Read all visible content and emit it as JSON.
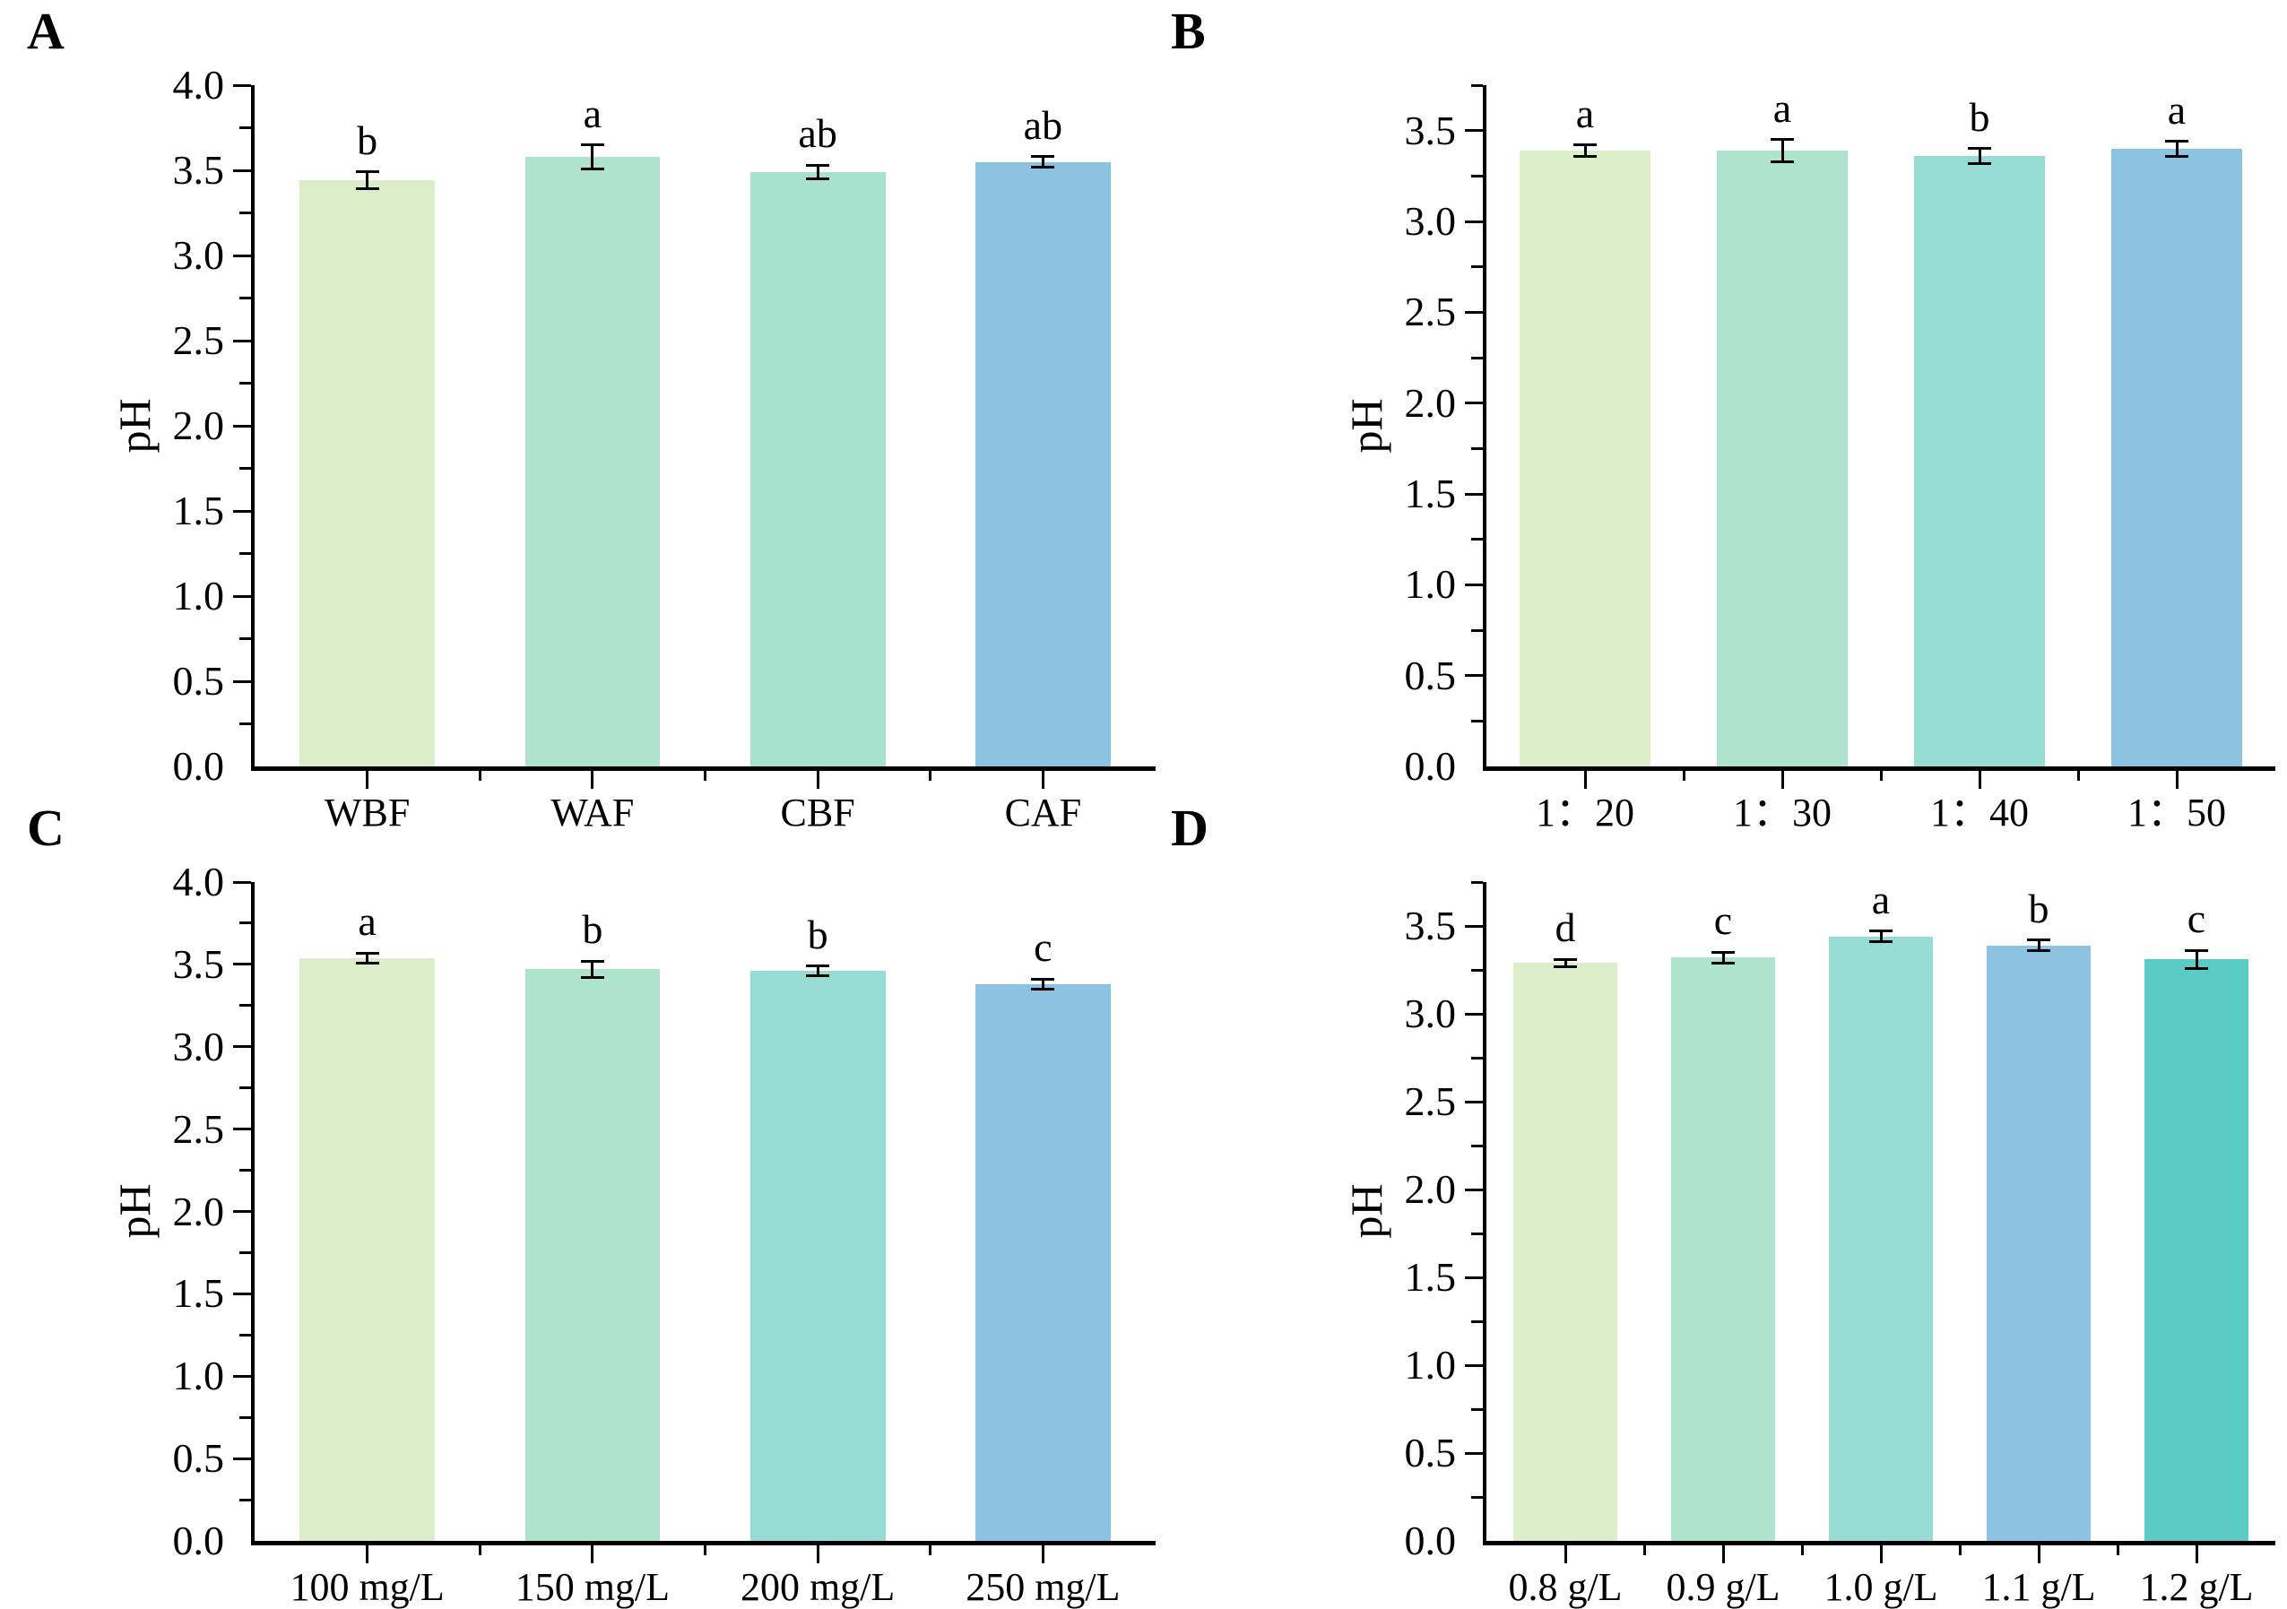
{
  "figure_title": "",
  "accent_colors": {
    "light_green": "#d9eec9",
    "mint_green": "#aee3cd",
    "aqua_teal": "#96dcd5",
    "light_blue": "#8cc3e3",
    "dark_teal": "#5accc5",
    "axis_black": "#000000"
  },
  "chart_data": [
    {
      "type": "bar",
      "panel_label": "A",
      "title": "",
      "xlabel": "",
      "ylabel": "pH",
      "ylim": [
        0,
        4.0
      ],
      "ytick_step": 0.5,
      "ytick_labels": [
        "0.0",
        "0.5",
        "1.0",
        "1.5",
        "2.0",
        "2.5",
        "3.0",
        "3.5",
        "4.0"
      ],
      "grid": false,
      "legend": "none",
      "categories": [
        "WBF",
        "WAF",
        "CBF",
        "CAF"
      ],
      "values": [
        3.44,
        3.58,
        3.49,
        3.55
      ],
      "errors": [
        0.05,
        0.07,
        0.04,
        0.03
      ],
      "sig_letters": [
        "b",
        "a",
        "ab",
        "ab"
      ],
      "colors": [
        "#d9eec9",
        "#aee3cd",
        "#a8e2cf",
        "#8cc3e3"
      ]
    },
    {
      "type": "bar",
      "panel_label": "B",
      "title": "",
      "xlabel": "",
      "ylabel": "pH",
      "ylim": [
        0,
        3.75
      ],
      "ytick_step": 0.5,
      "ytick_labels": [
        "0.0",
        "0.5",
        "1.0",
        "1.5",
        "2.0",
        "2.5",
        "3.0",
        "3.5"
      ],
      "grid": false,
      "legend": "none",
      "categories": [
        "1：20",
        "1：30",
        "1：40",
        "1：50"
      ],
      "values": [
        3.39,
        3.39,
        3.36,
        3.4
      ],
      "errors": [
        0.03,
        0.06,
        0.04,
        0.04
      ],
      "sig_letters": [
        "a",
        "a",
        "b",
        "a"
      ],
      "colors": [
        "#d9eec9",
        "#aee3cd",
        "#96dcd5",
        "#8cc3e3"
      ]
    },
    {
      "type": "bar",
      "panel_label": "C",
      "title": "",
      "xlabel": "",
      "ylabel": "pH",
      "ylim": [
        0,
        4.0
      ],
      "ytick_step": 0.5,
      "ytick_labels": [
        "0.0",
        "0.5",
        "1.0",
        "1.5",
        "2.0",
        "2.5",
        "3.0",
        "3.5",
        "4.0"
      ],
      "grid": false,
      "legend": "none",
      "categories": [
        "100 mg/L",
        "150 mg/L",
        "200 mg/L",
        "250 mg/L"
      ],
      "values": [
        3.54,
        3.47,
        3.46,
        3.38
      ],
      "errors": [
        0.03,
        0.05,
        0.03,
        0.03
      ],
      "sig_letters": [
        "a",
        "b",
        "b",
        "c"
      ],
      "colors": [
        "#d9eec9",
        "#aee3cd",
        "#96dcd5",
        "#8cc3e3"
      ]
    },
    {
      "type": "bar",
      "panel_label": "D",
      "title": "",
      "xlabel": "",
      "ylabel": "pH",
      "ylim": [
        0,
        3.75
      ],
      "ytick_step": 0.5,
      "ytick_labels": [
        "0.0",
        "0.5",
        "1.0",
        "1.5",
        "2.0",
        "2.5",
        "3.0",
        "3.5"
      ],
      "grid": false,
      "legend": "none",
      "categories": [
        "0.8 g/L",
        "0.9 g/L",
        "1.0 g/L",
        "1.1 g/L",
        "1.2 g/L"
      ],
      "values": [
        3.29,
        3.32,
        3.44,
        3.39,
        3.31
      ],
      "errors": [
        0.02,
        0.03,
        0.03,
        0.03,
        0.05
      ],
      "sig_letters": [
        "d",
        "c",
        "a",
        "b",
        "c"
      ],
      "colors": [
        "#d9eec9",
        "#aee3cd",
        "#96dcd5",
        "#8cc3e3",
        "#5accc5"
      ]
    }
  ]
}
